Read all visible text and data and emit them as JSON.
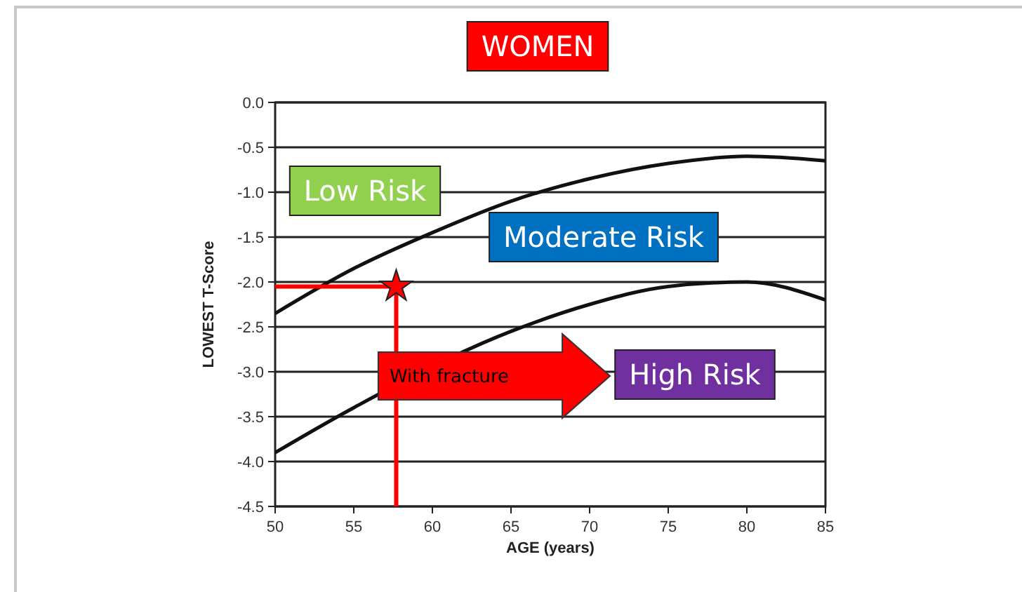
{
  "chart_data": {
    "type": "line",
    "title": "WOMEN",
    "xlabel": "AGE (years)",
    "ylabel": "LOWEST T-Score",
    "xlim": [
      50,
      85
    ],
    "xticks": [
      50,
      55,
      60,
      65,
      70,
      75,
      80,
      85
    ],
    "ylim": [
      -4.5,
      0
    ],
    "yticks": [
      {
        "value": -4.5,
        "label": "-4.5"
      },
      {
        "value": -4,
        "label": "-4.0"
      },
      {
        "value": -3.5,
        "label": "-3.5"
      },
      {
        "value": -3,
        "label": "-3.0"
      },
      {
        "value": -2.5,
        "label": "-2.5"
      },
      {
        "value": -2,
        "label": "-2.0"
      },
      {
        "value": -1.5,
        "label": "-1.5"
      },
      {
        "value": -1,
        "label": "-1.0"
      },
      {
        "value": -0.5,
        "label": "-0.5"
      },
      {
        "value": 0,
        "label": "0.0"
      }
    ],
    "grid": "y",
    "marker": "none",
    "line_style": "solid",
    "series": [
      {
        "color": "#111111",
        "x": [
          50,
          55,
          60,
          65,
          70,
          75,
          80,
          85
        ],
        "values": [
          -2.35,
          -1.85,
          -1.45,
          -1.1,
          -0.85,
          -0.68,
          -0.6,
          -0.65
        ]
      },
      {
        "color": "#111111",
        "x": [
          50,
          55,
          65,
          70,
          75,
          80,
          85
        ],
        "values": [
          -3.9,
          -3.4,
          -2.55,
          -2.25,
          -2.05,
          -2.0,
          -2.2
        ]
      },
      {
        "color": "#ff0000",
        "x": [
          50,
          57.7
        ],
        "values": [
          -2.05,
          -2.05
        ]
      },
      {
        "color": "#ff0000",
        "x": [
          57.7,
          57.7
        ],
        "values": [
          -4.5,
          -2.05
        ]
      },
      {
        "type": "scatter",
        "marker": "star",
        "color": "#ff0000",
        "x": [
          57.7
        ],
        "values": [
          -2.05
        ]
      }
    ],
    "annotations": [
      "Low Risk",
      "Moderate Risk",
      "With fracture",
      "High Risk"
    ]
  }
}
